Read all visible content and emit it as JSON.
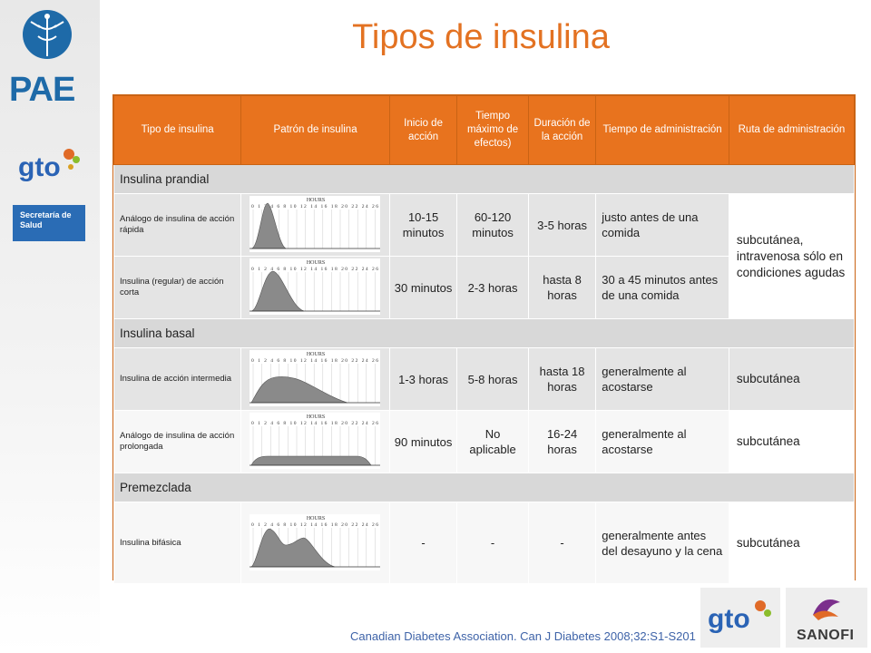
{
  "slide": {
    "title": "Tipos de insulina",
    "citation": "Canadian Diabetes Association. Can J Diabetes 2008;32:S1-S201"
  },
  "logos": {
    "pae_text": "PAE",
    "gto_text": "gto",
    "secretaria_text": "Secretaría de Salud",
    "sanofi_text": "SANOFI"
  },
  "table": {
    "headers": [
      "Tipo de insulina",
      "Patrón de insulina",
      "Inicio de acción",
      "Tiempo máximo de efectos)",
      "Duración de la acción",
      "Tiempo de administración",
      "Ruta de administración"
    ],
    "graph_axis_label": "HOURS",
    "graph_ticks": "0 1 2 4 6 8 10 12 14 16 18 20 22 24 26",
    "sections": {
      "prandial": "Insulina prandial",
      "basal": "Insulina basal",
      "premixed": "Premezclada"
    },
    "rows": [
      {
        "type": "Análogo de insulina de acción rápida",
        "onset": "10-15 minutos",
        "peak": "60-120 minutos",
        "duration": "3-5 horas",
        "timing": "justo antes de una comida",
        "route": "subcutánea, intravenosa sólo en condiciones agudas"
      },
      {
        "type": "Insulina  (regular) de acción corta",
        "onset": "30 minutos",
        "peak": "2-3 horas",
        "duration": "hasta 8 horas",
        "timing": "30 a 45 minutos antes de una comida"
      },
      {
        "type": "Insulina de acción intermedia",
        "onset": "1-3 horas",
        "peak": "5-8 horas",
        "duration": "hasta 18 horas",
        "timing": "generalmente al acostarse",
        "route": "subcutánea"
      },
      {
        "type": "Análogo de insulina de acción prolongada",
        "onset": "90 minutos",
        "peak": "No aplicable",
        "duration": "16-24 horas",
        "timing": "generalmente al acostarse",
        "route": "subcutánea"
      },
      {
        "type": "Insulina bifásica",
        "onset": "-",
        "peak": "-",
        "duration": "-",
        "timing": "generalmente antes del desayuno y la cena",
        "route": "subcutánea"
      }
    ]
  },
  "colors": {
    "accent_orange": "#e8731e",
    "title_orange": "#e37222",
    "citation_blue": "#3e63a8"
  }
}
